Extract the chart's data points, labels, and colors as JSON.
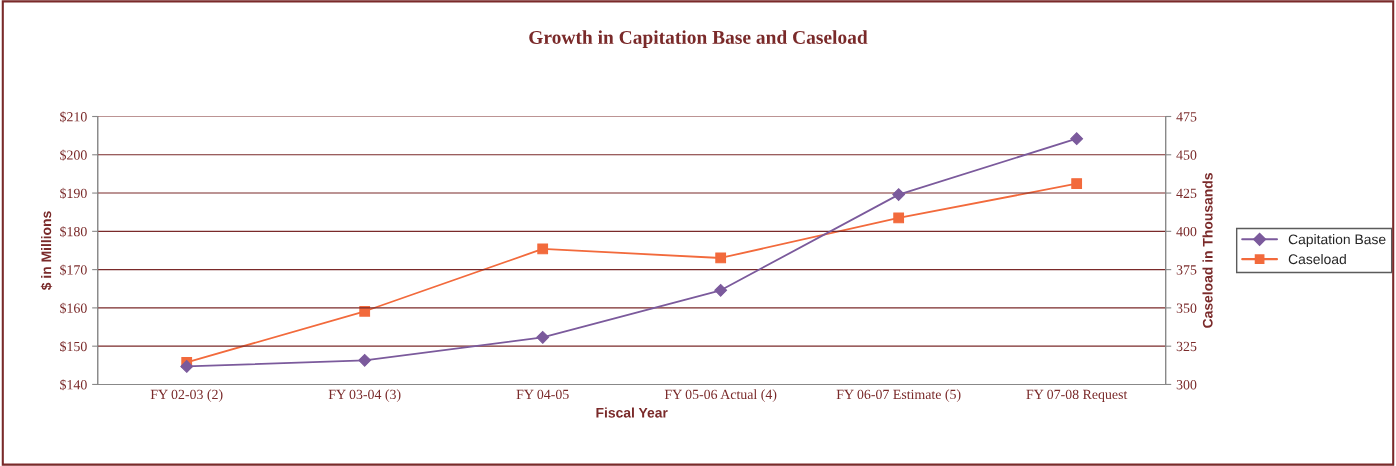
{
  "chart_data": {
    "type": "line",
    "title": "Growth in Capitation Base and Caseload",
    "xlabel": "Fiscal Year",
    "ylabel": "$ in Millions",
    "y2label": "Caseload in Thousands",
    "categories": [
      "FY 02-03 (2)",
      "FY 03-04 (3)",
      "FY 04-05",
      "FY 05-06 Actual (4)",
      "FY 06-07 Estimate (5)",
      "FY 07-08 Request"
    ],
    "series": [
      {
        "name": "Capitation Base",
        "color": "#7b5a9c",
        "marker": "diamond",
        "values": [
          144.7,
          146.3,
          152.3,
          164.6,
          189.6,
          204.2
        ]
      },
      {
        "name": "Caseload",
        "color": "#f26a3c",
        "marker": "square",
        "axis": "y2",
        "values": [
          314.4,
          347.8,
          388.5,
          382.6,
          408.8,
          431.1
        ]
      }
    ],
    "ylim": [
      140,
      210
    ],
    "yticks": [
      {
        "value": 140,
        "label": "$140"
      },
      {
        "value": 150,
        "label": "$150"
      },
      {
        "value": 160,
        "label": "$160"
      },
      {
        "value": 170,
        "label": "$170"
      },
      {
        "value": 180,
        "label": "$180"
      },
      {
        "value": 190,
        "label": "$190"
      },
      {
        "value": 200,
        "label": "$200"
      },
      {
        "value": 210,
        "label": "$210"
      }
    ],
    "y2lim": [
      300,
      475
    ],
    "y2ticks": [
      300,
      325,
      350,
      375,
      400,
      425,
      450,
      475
    ],
    "grid": "y",
    "legend": "right",
    "line_style": "solid"
  }
}
